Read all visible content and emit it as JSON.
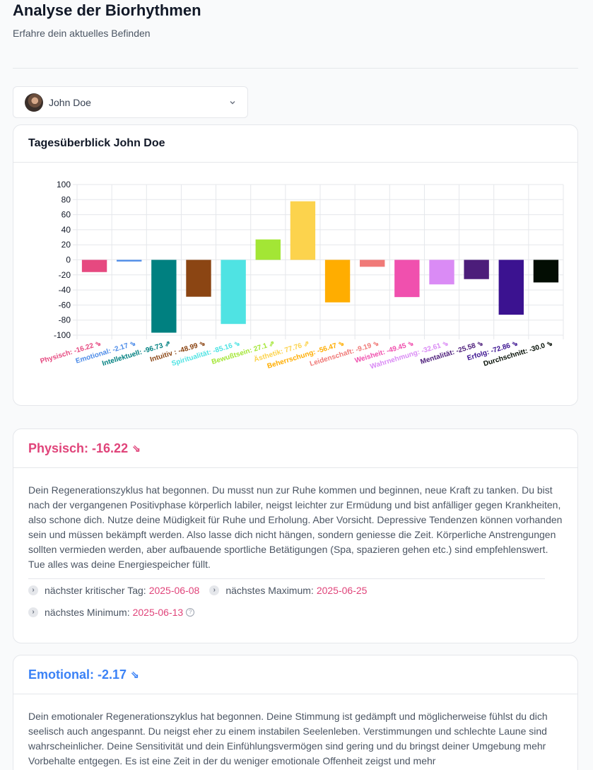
{
  "header": {
    "title": "Analyse der Biorhythmen",
    "subtitle": "Erfahre dein aktuelles Befinden"
  },
  "person_select": {
    "value": "John Doe"
  },
  "chart_card": {
    "title": "Tagesüberblick John Doe"
  },
  "chart_data": {
    "type": "bar",
    "title": "Tagesüberblick John Doe",
    "ylim": [
      -100,
      100
    ],
    "yticks": [
      100,
      80,
      60,
      40,
      20,
      0,
      -20,
      -40,
      -60,
      -80,
      -100
    ],
    "grid": true,
    "categories": [
      "Physisch: -16.22 ⇘",
      "Emotional: -2.17 ⇘",
      "Intellektuell: -96.73 ⇗",
      "Intuitiv : -48.99 ⇘",
      "Spiritualität: -85.16 ⇘",
      "Bewußtsein: 27.1 ⇗",
      "Ästhetik: 77.76 ⇗",
      "Beherrschung: -56.47 ⇘",
      "Leidenschaft: -9.19 ⇘",
      "Weisheit: -49.45 ⇘",
      "Wahrnehmung: -32.61 ⇘",
      "Mentalität: -25.58 ⇘",
      "Erfolg: -72.86 ⇘",
      "Durchschnitt: -30.0 ⇘"
    ],
    "values": [
      -16.22,
      -2.17,
      -96.73,
      -48.99,
      -85.16,
      27.1,
      77.76,
      -56.47,
      -9.19,
      -49.45,
      -32.61,
      -25.58,
      -72.86,
      -30.0
    ],
    "colors": [
      "#e64980",
      "#4c8be8",
      "#008080",
      "#8b4513",
      "#4fe3e3",
      "#a3e635",
      "#fcd34d",
      "#ffad00",
      "#f07a78",
      "#f050ae",
      "#da8bf5",
      "#4c1d7a",
      "#3b1290",
      "#030d03"
    ]
  },
  "sections": [
    {
      "title": "Physisch: -16.22",
      "trend_icon": "⇘",
      "color": "#e0447a",
      "description": "Dein Regenerationszyklus hat begonnen. Du musst nun zur Ruhe kommen und beginnen, neue Kraft zu tanken. Du bist nach der vergangenen Positivphase körperlich labiler, neigst leichter zur Ermüdung und bist anfälliger gegen Krankheiten, also schone dich. Nutze deine Müdigkeit für Ruhe und Erholung. Aber Vorsicht. Depressive Tendenzen können vorhanden sein und müssen bekämpft werden. Also lasse dich nicht hängen, sondern geniesse die Zeit. Körperliche Anstrengungen sollten vermieden werden, aber aufbauende sportliche Betätigungen (Spa, spazieren gehen etc.) sind empfehlenswert. Tue alles was deine Energiespeicher füllt.",
      "critical_label": "nächster kritischer Tag:",
      "critical_date": "2025-06-08",
      "max_label": "nächstes Maximum:",
      "max_date": "2025-06-25",
      "min_label": "nächstes Minimum:",
      "min_date": "2025-06-13"
    },
    {
      "title": "Emotional: -2.17",
      "trend_icon": "⇘",
      "color": "#3b82f6",
      "description": "Dein emotionaler Regenerationszyklus hat begonnen. Deine Stimmung ist gedämpft und möglicherweise fühlst du dich seelisch auch angespannt. Du neigst eher zu einem instabilen Seelenleben. Verstimmungen und schlechte Laune sind wahrscheinlicher. Deine Sensitivität und dein Einfühlungsvermögen sind gering und du bringst deiner Umgebung mehr Vorbehalte entgegen. Es ist eine Zeit in der du weniger emotionale Offenheit zeigst und mehr"
    }
  ]
}
